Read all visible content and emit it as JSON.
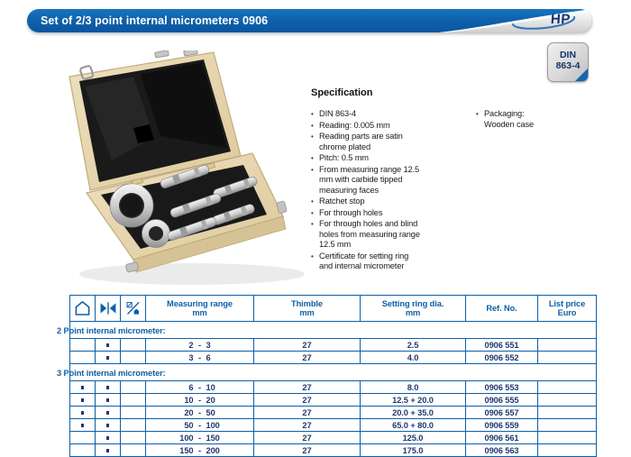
{
  "header": {
    "title": "Set of 2/3 point internal micrometers 0906",
    "logo_text": "HP"
  },
  "badge": {
    "line1": "DIN",
    "line2": "863-4"
  },
  "product_image": {
    "description": "Open wooden case with 2/3 point internal micrometer set and setting rings"
  },
  "specification": {
    "heading": "Specification",
    "items": [
      "DIN 863-4",
      "Reading: 0.005 mm",
      "Reading parts are satin chrome plated",
      "Pitch: 0.5 mm",
      "From measuring range 12.5 mm with carbide tipped measuring faces",
      "Ratchet stop",
      "For through holes",
      "For through holes and blind holes from measuring range 12.5 mm",
      "Certificate for setting ring and internal micrometer"
    ],
    "packaging_label": "Packaging:",
    "packaging_value": "Wooden case"
  },
  "table": {
    "icon_columns": [
      "blind-hole-icon",
      "through-hole-icon",
      "tolerance-icon"
    ],
    "columns": [
      {
        "label": "Measuring range",
        "unit": "mm"
      },
      {
        "label": "Thimble",
        "unit": "mm"
      },
      {
        "label": "Setting ring dia.",
        "unit": "mm"
      },
      {
        "label": "Ref. No.",
        "unit": ""
      },
      {
        "label": "List price",
        "unit": "Euro"
      }
    ],
    "range_separator": "-",
    "sections": [
      {
        "title": "2 Point internal micrometer:",
        "rows": [
          {
            "blind_hole": false,
            "through_hole": true,
            "range_from": "2",
            "range_to": "3",
            "thimble": "27",
            "setting_ring_dia": "2.5",
            "ref_no": "0906 551",
            "list_price": ""
          },
          {
            "blind_hole": false,
            "through_hole": true,
            "range_from": "3",
            "range_to": "6",
            "thimble": "27",
            "setting_ring_dia": "4.0",
            "ref_no": "0906 552",
            "list_price": ""
          }
        ]
      },
      {
        "title": "3 Point internal micrometer:",
        "rows": [
          {
            "blind_hole": true,
            "through_hole": true,
            "range_from": "6",
            "range_to": "10",
            "thimble": "27",
            "setting_ring_dia": "8.0",
            "ref_no": "0906 553",
            "list_price": ""
          },
          {
            "blind_hole": true,
            "through_hole": true,
            "range_from": "10",
            "range_to": "20",
            "thimble": "27",
            "setting_ring_dia": "12.5 + 20.0",
            "ref_no": "0906 555",
            "list_price": ""
          },
          {
            "blind_hole": true,
            "through_hole": true,
            "range_from": "20",
            "range_to": "50",
            "thimble": "27",
            "setting_ring_dia": "20.0 + 35.0",
            "ref_no": "0906 557",
            "list_price": ""
          },
          {
            "blind_hole": true,
            "through_hole": true,
            "range_from": "50",
            "range_to": "100",
            "thimble": "27",
            "setting_ring_dia": "65.0 + 80.0",
            "ref_no": "0906 559",
            "list_price": ""
          },
          {
            "blind_hole": false,
            "through_hole": true,
            "range_from": "100",
            "range_to": "150",
            "thimble": "27",
            "setting_ring_dia": "125.0",
            "ref_no": "0906 561",
            "list_price": ""
          },
          {
            "blind_hole": false,
            "through_hole": true,
            "range_from": "150",
            "range_to": "200",
            "thimble": "27",
            "setting_ring_dia": "175.0",
            "ref_no": "0906 563",
            "list_price": ""
          }
        ]
      }
    ]
  },
  "colors": {
    "accent_blue": "#0e5fa8",
    "data_navy": "#21386e",
    "badge_triangle": "#1565b0"
  }
}
